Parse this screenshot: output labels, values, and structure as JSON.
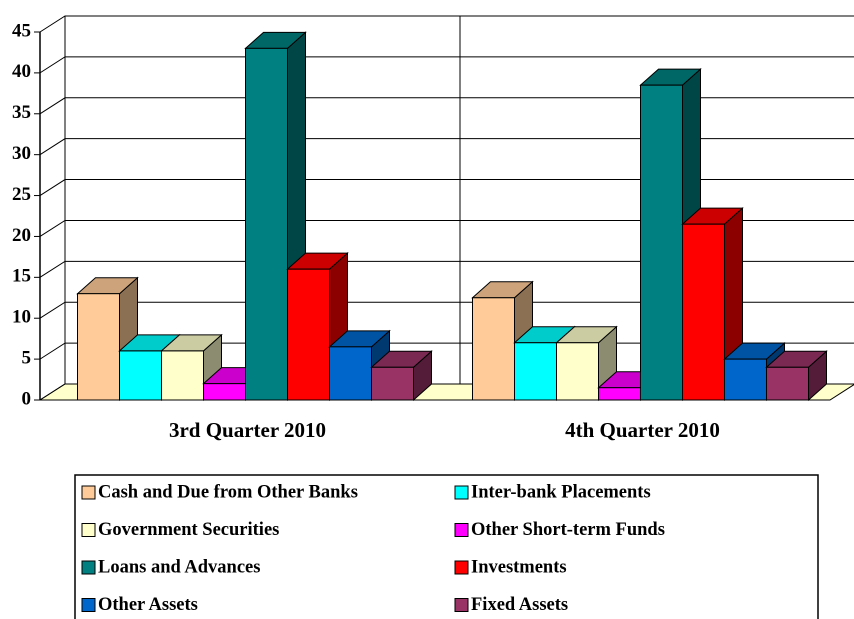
{
  "chart_data": {
    "type": "bar3d",
    "categories": [
      "3rd Quarter 2010",
      "4th Quarter 2010"
    ],
    "series": [
      {
        "name": "Cash and Due from Other Banks",
        "color": "#FFCC99",
        "values": [
          13,
          12.5
        ]
      },
      {
        "name": "Inter-bank Placements",
        "color": "#00FFFF",
        "values": [
          6,
          7
        ]
      },
      {
        "name": "Government Securities",
        "color": "#FFFFCC",
        "values": [
          6,
          7
        ]
      },
      {
        "name": "Other Short-term Funds",
        "color": "#FF00FF",
        "values": [
          2,
          1.5
        ]
      },
      {
        "name": "Loans and Advances",
        "color": "#008080",
        "values": [
          43,
          38.5
        ]
      },
      {
        "name": "Investments",
        "color": "#FF0000",
        "values": [
          16,
          21.5
        ]
      },
      {
        "name": "Other Assets",
        "color": "#0066CC",
        "values": [
          6.5,
          5
        ]
      },
      {
        "name": "Fixed Assets",
        "color": "#993366",
        "values": [
          4,
          4
        ]
      }
    ],
    "ylim": [
      0,
      45
    ],
    "yticks": [
      0,
      5,
      10,
      15,
      20,
      25,
      30,
      35,
      40,
      45
    ],
    "grid": true
  }
}
